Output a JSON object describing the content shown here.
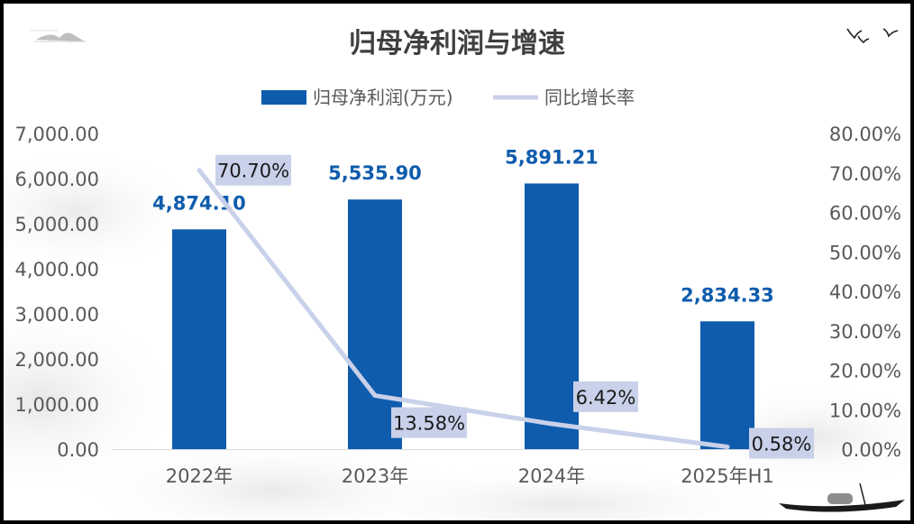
{
  "chart_data": {
    "type": "bar+line",
    "title": "归母净利润与增速",
    "categories": [
      "2022年",
      "2023年",
      "2024年",
      "2025年H1"
    ],
    "series": [
      {
        "name": "归母净利润(万元)",
        "type": "bar",
        "axis": "left",
        "values": [
          4874.1,
          5535.9,
          5891.21,
          2834.33
        ],
        "labels": [
          "4,874.10",
          "5,535.90",
          "5,891.21",
          "2,834.33"
        ]
      },
      {
        "name": "同比增长率",
        "type": "line",
        "axis": "right",
        "values": [
          70.7,
          13.58,
          6.42,
          0.58
        ],
        "labels": [
          "70.70%",
          "13.58%",
          "6.42%",
          "0.58%"
        ]
      }
    ],
    "y_left": {
      "ylim": [
        0,
        7000
      ],
      "ticks": [
        "0.00",
        "1,000.00",
        "2,000.00",
        "3,000.00",
        "4,000.00",
        "5,000.00",
        "6,000.00",
        "7,000.00"
      ]
    },
    "y_right": {
      "ylim": [
        0,
        80
      ],
      "ticks": [
        "0.00%",
        "10.00%",
        "20.00%",
        "30.00%",
        "40.00%",
        "50.00%",
        "60.00%",
        "70.00%",
        "80.00%"
      ]
    },
    "legend_position": "top",
    "grid": false
  },
  "colors": {
    "bar": "#0f5cad",
    "bar_label": "#0f5cad",
    "line": "#c9d1ea",
    "line_label_bg": "#c9d1ea",
    "axis_text": "#595959",
    "title": "#3f3f3f"
  }
}
